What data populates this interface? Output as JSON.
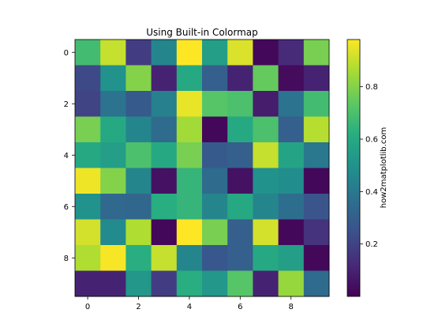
{
  "chart_data": {
    "type": "heatmap",
    "title": "Using Built-in Colormap",
    "xlabel": "",
    "ylabel": "",
    "colorbar_label": "how2matplotlib.com",
    "colormap": "viridis",
    "x_ticks": [
      "0",
      "2",
      "4",
      "6",
      "8"
    ],
    "y_ticks": [
      "0",
      "2",
      "4",
      "6",
      "8"
    ],
    "colorbar_ticks": [
      "0.2",
      "0.4",
      "0.6",
      "0.8"
    ],
    "grid": false,
    "vmin": 0.0,
    "vmax": 0.98,
    "values": [
      [
        0.68,
        0.9,
        0.18,
        0.45,
        0.98,
        0.55,
        0.93,
        0.02,
        0.12,
        0.78
      ],
      [
        0.22,
        0.5,
        0.8,
        0.1,
        0.6,
        0.3,
        0.1,
        0.75,
        0.03,
        0.1
      ],
      [
        0.2,
        0.38,
        0.28,
        0.43,
        0.95,
        0.72,
        0.7,
        0.08,
        0.38,
        0.68
      ],
      [
        0.78,
        0.6,
        0.45,
        0.35,
        0.85,
        0.02,
        0.6,
        0.7,
        0.3,
        0.88
      ],
      [
        0.6,
        0.55,
        0.7,
        0.6,
        0.78,
        0.28,
        0.3,
        0.9,
        0.58,
        0.4
      ],
      [
        0.96,
        0.8,
        0.45,
        0.05,
        0.65,
        0.35,
        0.05,
        0.5,
        0.48,
        0.02
      ],
      [
        0.5,
        0.34,
        0.33,
        0.62,
        0.65,
        0.45,
        0.6,
        0.45,
        0.36,
        0.26
      ],
      [
        0.92,
        0.47,
        0.87,
        0.02,
        0.98,
        0.78,
        0.3,
        0.92,
        0.02,
        0.15
      ],
      [
        0.87,
        0.97,
        0.62,
        0.9,
        0.45,
        0.27,
        0.3,
        0.6,
        0.55,
        0.02
      ],
      [
        0.1,
        0.1,
        0.52,
        0.18,
        0.62,
        0.52,
        0.72,
        0.1,
        0.83,
        0.35
      ]
    ]
  }
}
